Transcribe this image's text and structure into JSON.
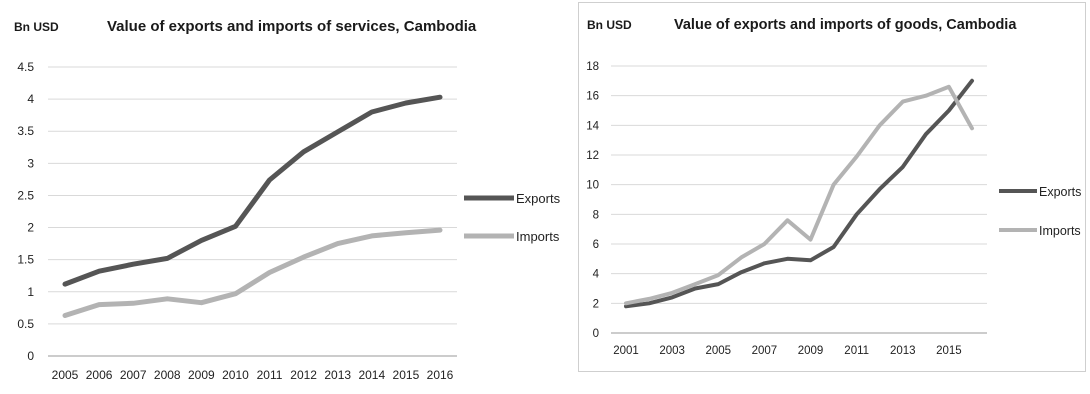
{
  "chart_data": [
    {
      "type": "line",
      "title": "Value of exports and imports of services, Cambodia",
      "unit_label": "Bn USD",
      "xlabel": "",
      "ylabel": "",
      "x": [
        "2005",
        "2006",
        "2007",
        "2008",
        "2009",
        "2010",
        "2011",
        "2012",
        "2013",
        "2014",
        "2015",
        "2016"
      ],
      "ylim": [
        0,
        4.5
      ],
      "yticks": [
        "0",
        "0.5",
        "1",
        "1.5",
        "2",
        "2.5",
        "3",
        "3.5",
        "4",
        "4.5"
      ],
      "grid": true,
      "legend": "right",
      "series": [
        {
          "name": "Exports",
          "color": "#555555",
          "values": [
            1.12,
            1.32,
            1.43,
            1.52,
            1.8,
            2.02,
            2.74,
            3.18,
            3.49,
            3.8,
            3.94,
            4.03
          ]
        },
        {
          "name": "Imports",
          "color": "#b3b3b3",
          "values": [
            0.63,
            0.8,
            0.82,
            0.89,
            0.83,
            0.97,
            1.3,
            1.54,
            1.75,
            1.87,
            1.92,
            1.96
          ]
        }
      ]
    },
    {
      "type": "line",
      "title": "Value of exports and imports of goods, Cambodia",
      "unit_label": "Bn USD",
      "xlabel": "",
      "ylabel": "",
      "x": [
        "2001",
        "2002",
        "2003",
        "2004",
        "2005",
        "2006",
        "2007",
        "2008",
        "2009",
        "2010",
        "2011",
        "2012",
        "2013",
        "2014",
        "2015",
        "2016"
      ],
      "xticks": [
        "2001",
        "2003",
        "2005",
        "2007",
        "2009",
        "2011",
        "2013",
        "2015"
      ],
      "ylim": [
        0,
        18
      ],
      "yticks": [
        "0",
        "2",
        "4",
        "6",
        "8",
        "10",
        "12",
        "14",
        "16",
        "18"
      ],
      "grid": true,
      "legend": "right",
      "series": [
        {
          "name": "Exports",
          "color": "#555555",
          "values": [
            1.8,
            2.0,
            2.4,
            3.0,
            3.3,
            4.1,
            4.7,
            5.0,
            4.9,
            5.8,
            8.0,
            9.7,
            11.2,
            13.4,
            15.0,
            17.0
          ]
        },
        {
          "name": "Imports",
          "color": "#b3b3b3",
          "values": [
            2.0,
            2.3,
            2.7,
            3.3,
            3.9,
            5.1,
            6.0,
            7.6,
            6.3,
            10.0,
            11.9,
            14.0,
            15.6,
            16.0,
            16.6,
            13.8
          ]
        }
      ]
    }
  ]
}
